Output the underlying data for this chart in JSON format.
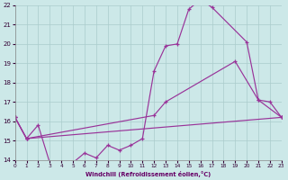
{
  "xlabel": "Windchill (Refroidissement éolien,°C)",
  "background_color": "#cce8e8",
  "line_color": "#993399",
  "grid_color": "#aacccc",
  "xmin": 0,
  "xmax": 23,
  "ymin": 14,
  "ymax": 22,
  "yticks": [
    14,
    15,
    16,
    17,
    18,
    19,
    20,
    21,
    22
  ],
  "xticks": [
    0,
    1,
    2,
    3,
    4,
    5,
    6,
    7,
    8,
    9,
    10,
    11,
    12,
    13,
    14,
    15,
    16,
    17,
    18,
    19,
    20,
    21,
    22,
    23
  ],
  "line1_x": [
    0,
    1,
    2,
    3,
    4,
    5,
    6,
    7,
    8,
    9,
    10,
    11,
    12,
    13,
    14,
    15,
    16,
    17,
    20,
    21,
    22,
    23
  ],
  "line1_y": [
    16.2,
    15.1,
    15.8,
    13.85,
    13.85,
    13.85,
    14.35,
    14.1,
    14.75,
    14.5,
    14.75,
    15.1,
    18.6,
    19.9,
    20.0,
    21.8,
    22.3,
    21.9,
    20.1,
    17.1,
    17.0,
    16.2
  ],
  "line2_x": [
    0,
    1,
    12,
    13,
    19,
    21,
    23
  ],
  "line2_y": [
    16.2,
    15.1,
    16.3,
    17.0,
    19.1,
    17.1,
    16.2
  ],
  "line3_x": [
    0,
    1,
    23
  ],
  "line3_y": [
    16.2,
    15.1,
    16.2
  ]
}
